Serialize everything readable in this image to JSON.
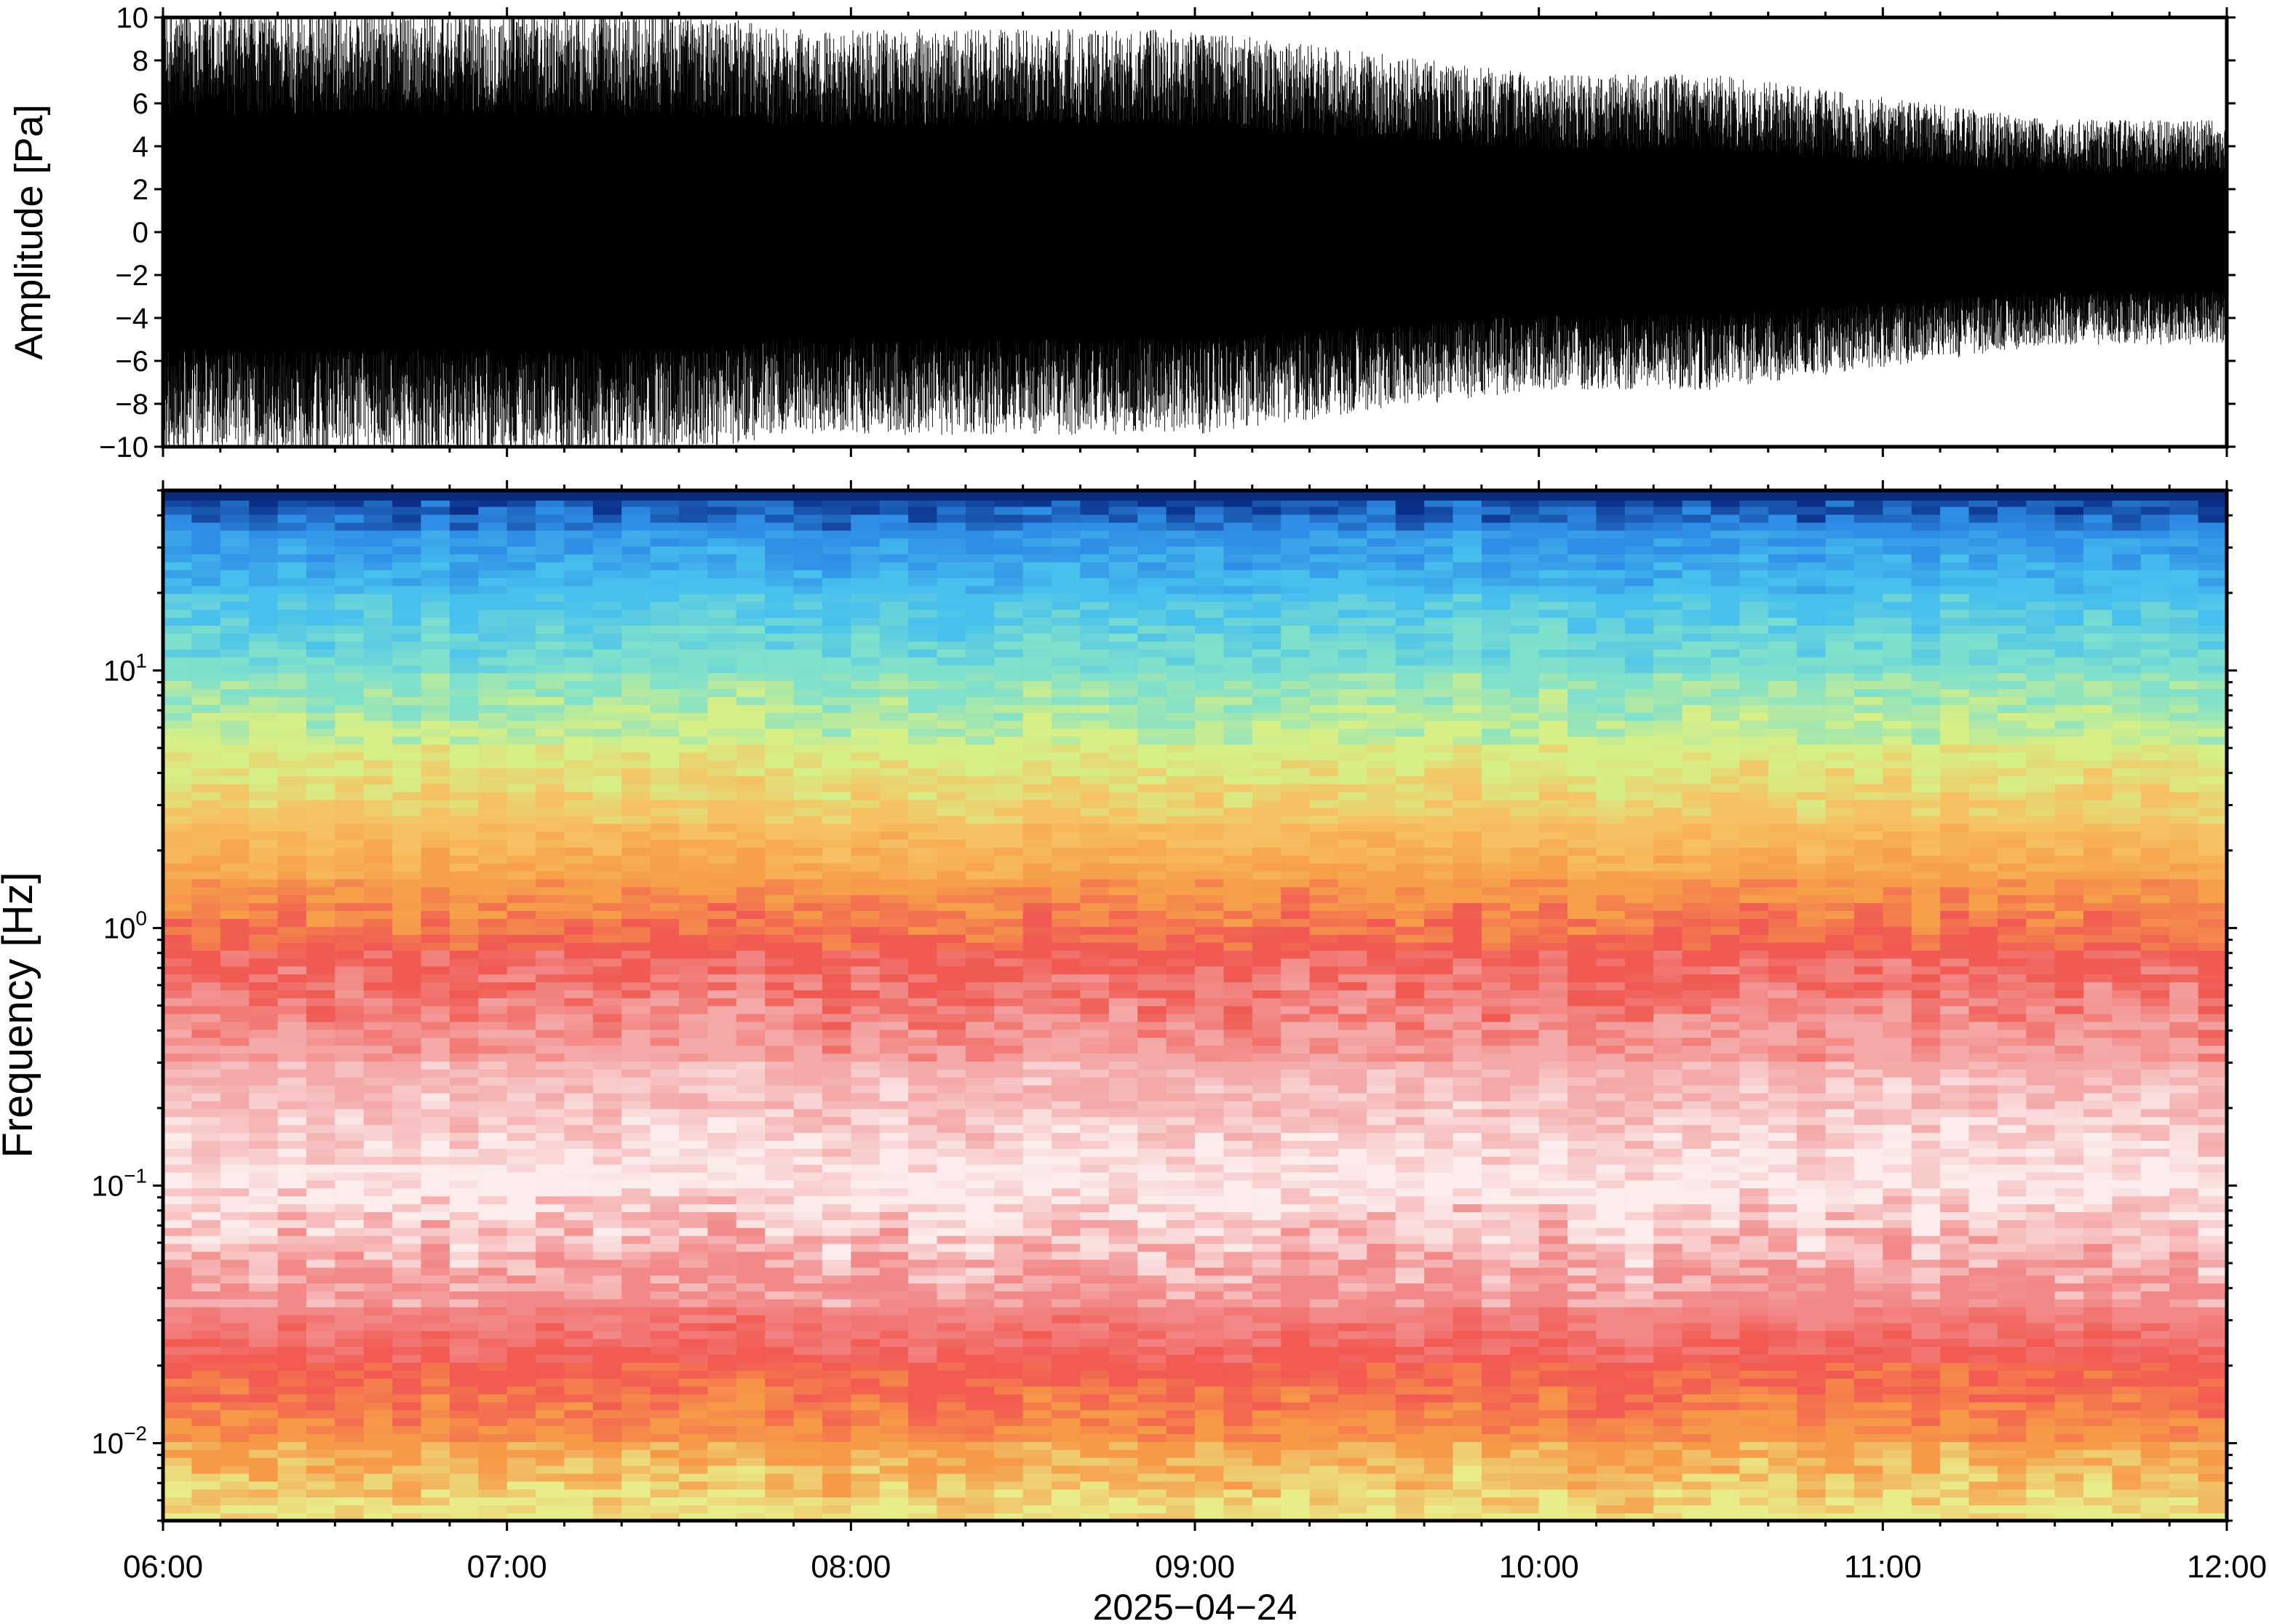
{
  "chart_data": [
    {
      "type": "line",
      "title": "",
      "xlabel": "",
      "ylabel": "Amplitude [Pa]",
      "ylim": [
        -10,
        10
      ],
      "grid": false,
      "y_ticks": [
        "−10",
        "−8",
        "−6",
        "−4",
        "−2",
        "0",
        "2",
        "4",
        "6",
        "8",
        "10"
      ],
      "y_tick_values": [
        -10,
        -8,
        -6,
        -4,
        -2,
        0,
        2,
        4,
        6,
        8,
        10
      ],
      "envelope_x_hours": [
        6.0,
        6.5,
        7.0,
        7.5,
        7.8,
        8.0,
        8.5,
        9.0,
        9.5,
        10.0,
        10.5,
        11.0,
        11.5,
        12.0
      ],
      "envelope_values": [
        10,
        10,
        10,
        10,
        9,
        9,
        9,
        9,
        8,
        7,
        7,
        6,
        5,
        5
      ],
      "series_color": "#000000"
    },
    {
      "type": "heatmap",
      "title": "",
      "xlabel": "2025−04−24",
      "ylabel": "Frequency [Hz]",
      "y_scale": "log",
      "ylim": [
        0.005,
        50
      ],
      "xlim": [
        "06:00",
        "12:00"
      ],
      "x_ticks": [
        "06:00",
        "07:00",
        "08:00",
        "09:00",
        "10:00",
        "11:00",
        "12:00"
      ],
      "x_tick_hours": [
        6,
        7,
        8,
        9,
        10,
        11,
        12
      ],
      "y_ticks": [
        {
          "base": "10",
          "exp": "1",
          "value": 10
        },
        {
          "base": "10",
          "exp": "0",
          "value": 1
        },
        {
          "base": "10",
          "exp": "−1",
          "value": 0.1
        },
        {
          "base": "10",
          "exp": "−2",
          "value": 0.01
        }
      ],
      "colormap": [
        "#08307a",
        "#1f78d6",
        "#3fb6f0",
        "#6ad8d0",
        "#b8ec8a",
        "#f2e67a",
        "#f9a848",
        "#f46a4e",
        "#f29c9c",
        "#fbe8e8"
      ],
      "level_frequencies": [
        50,
        35,
        20,
        10,
        5,
        2.5,
        1.5,
        0.8,
        0.3,
        0.1,
        0.035,
        0.02,
        0.01,
        0.005
      ],
      "level_colors": [
        "#0a2f8a",
        "#2f8ee6",
        "#48c0ee",
        "#7fe0cc",
        "#d6ef86",
        "#f7c062",
        "#f7a04a",
        "#f05a52",
        "#f4a8a8",
        "#fcecec",
        "#f28888",
        "#f25a52",
        "#f79a48",
        "#e9ec8a"
      ]
    }
  ]
}
